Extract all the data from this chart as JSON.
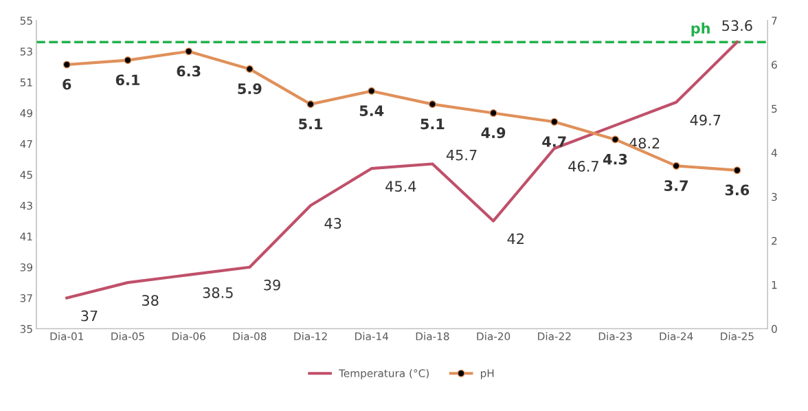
{
  "chart_data": {
    "type": "line",
    "categories": [
      "Dia-01",
      "Dia-05",
      "Dia-06",
      "Dia-08",
      "Dia-12",
      "Dia-14",
      "Dia-18",
      "Dia-20",
      "Dia-22",
      "Dia-23",
      "Dia-24",
      "Dia-25"
    ],
    "series": [
      {
        "name": "Temperatura (°C)",
        "color": "#c0506a",
        "marker": "none",
        "values": [
          37,
          38,
          38.5,
          39,
          43,
          45.4,
          45.7,
          42,
          46.7,
          48.2,
          49.7,
          53.6
        ]
      },
      {
        "name": "pH",
        "color": "#e0905a",
        "marker": "circle",
        "axis": "y2",
        "values": [
          6,
          6.1,
          6.3,
          5.9,
          5.1,
          5.4,
          5.1,
          4.9,
          4.7,
          4.3,
          3.7,
          3.6
        ]
      }
    ],
    "ylim": [
      35,
      55
    ],
    "yticks": [
      35,
      37,
      39,
      41,
      43,
      45,
      47,
      49,
      51,
      53,
      55
    ],
    "y2lim": [
      0,
      7
    ],
    "y2ticks": [
      0,
      1,
      2,
      3,
      4,
      5,
      6,
      7
    ],
    "ref_lines": [
      {
        "axis": "y",
        "value": 53.6,
        "label": "ph",
        "color": "#22b14c",
        "line_style": "dashed"
      }
    ],
    "data_labels": true,
    "grid": false,
    "legend": "bottom"
  }
}
